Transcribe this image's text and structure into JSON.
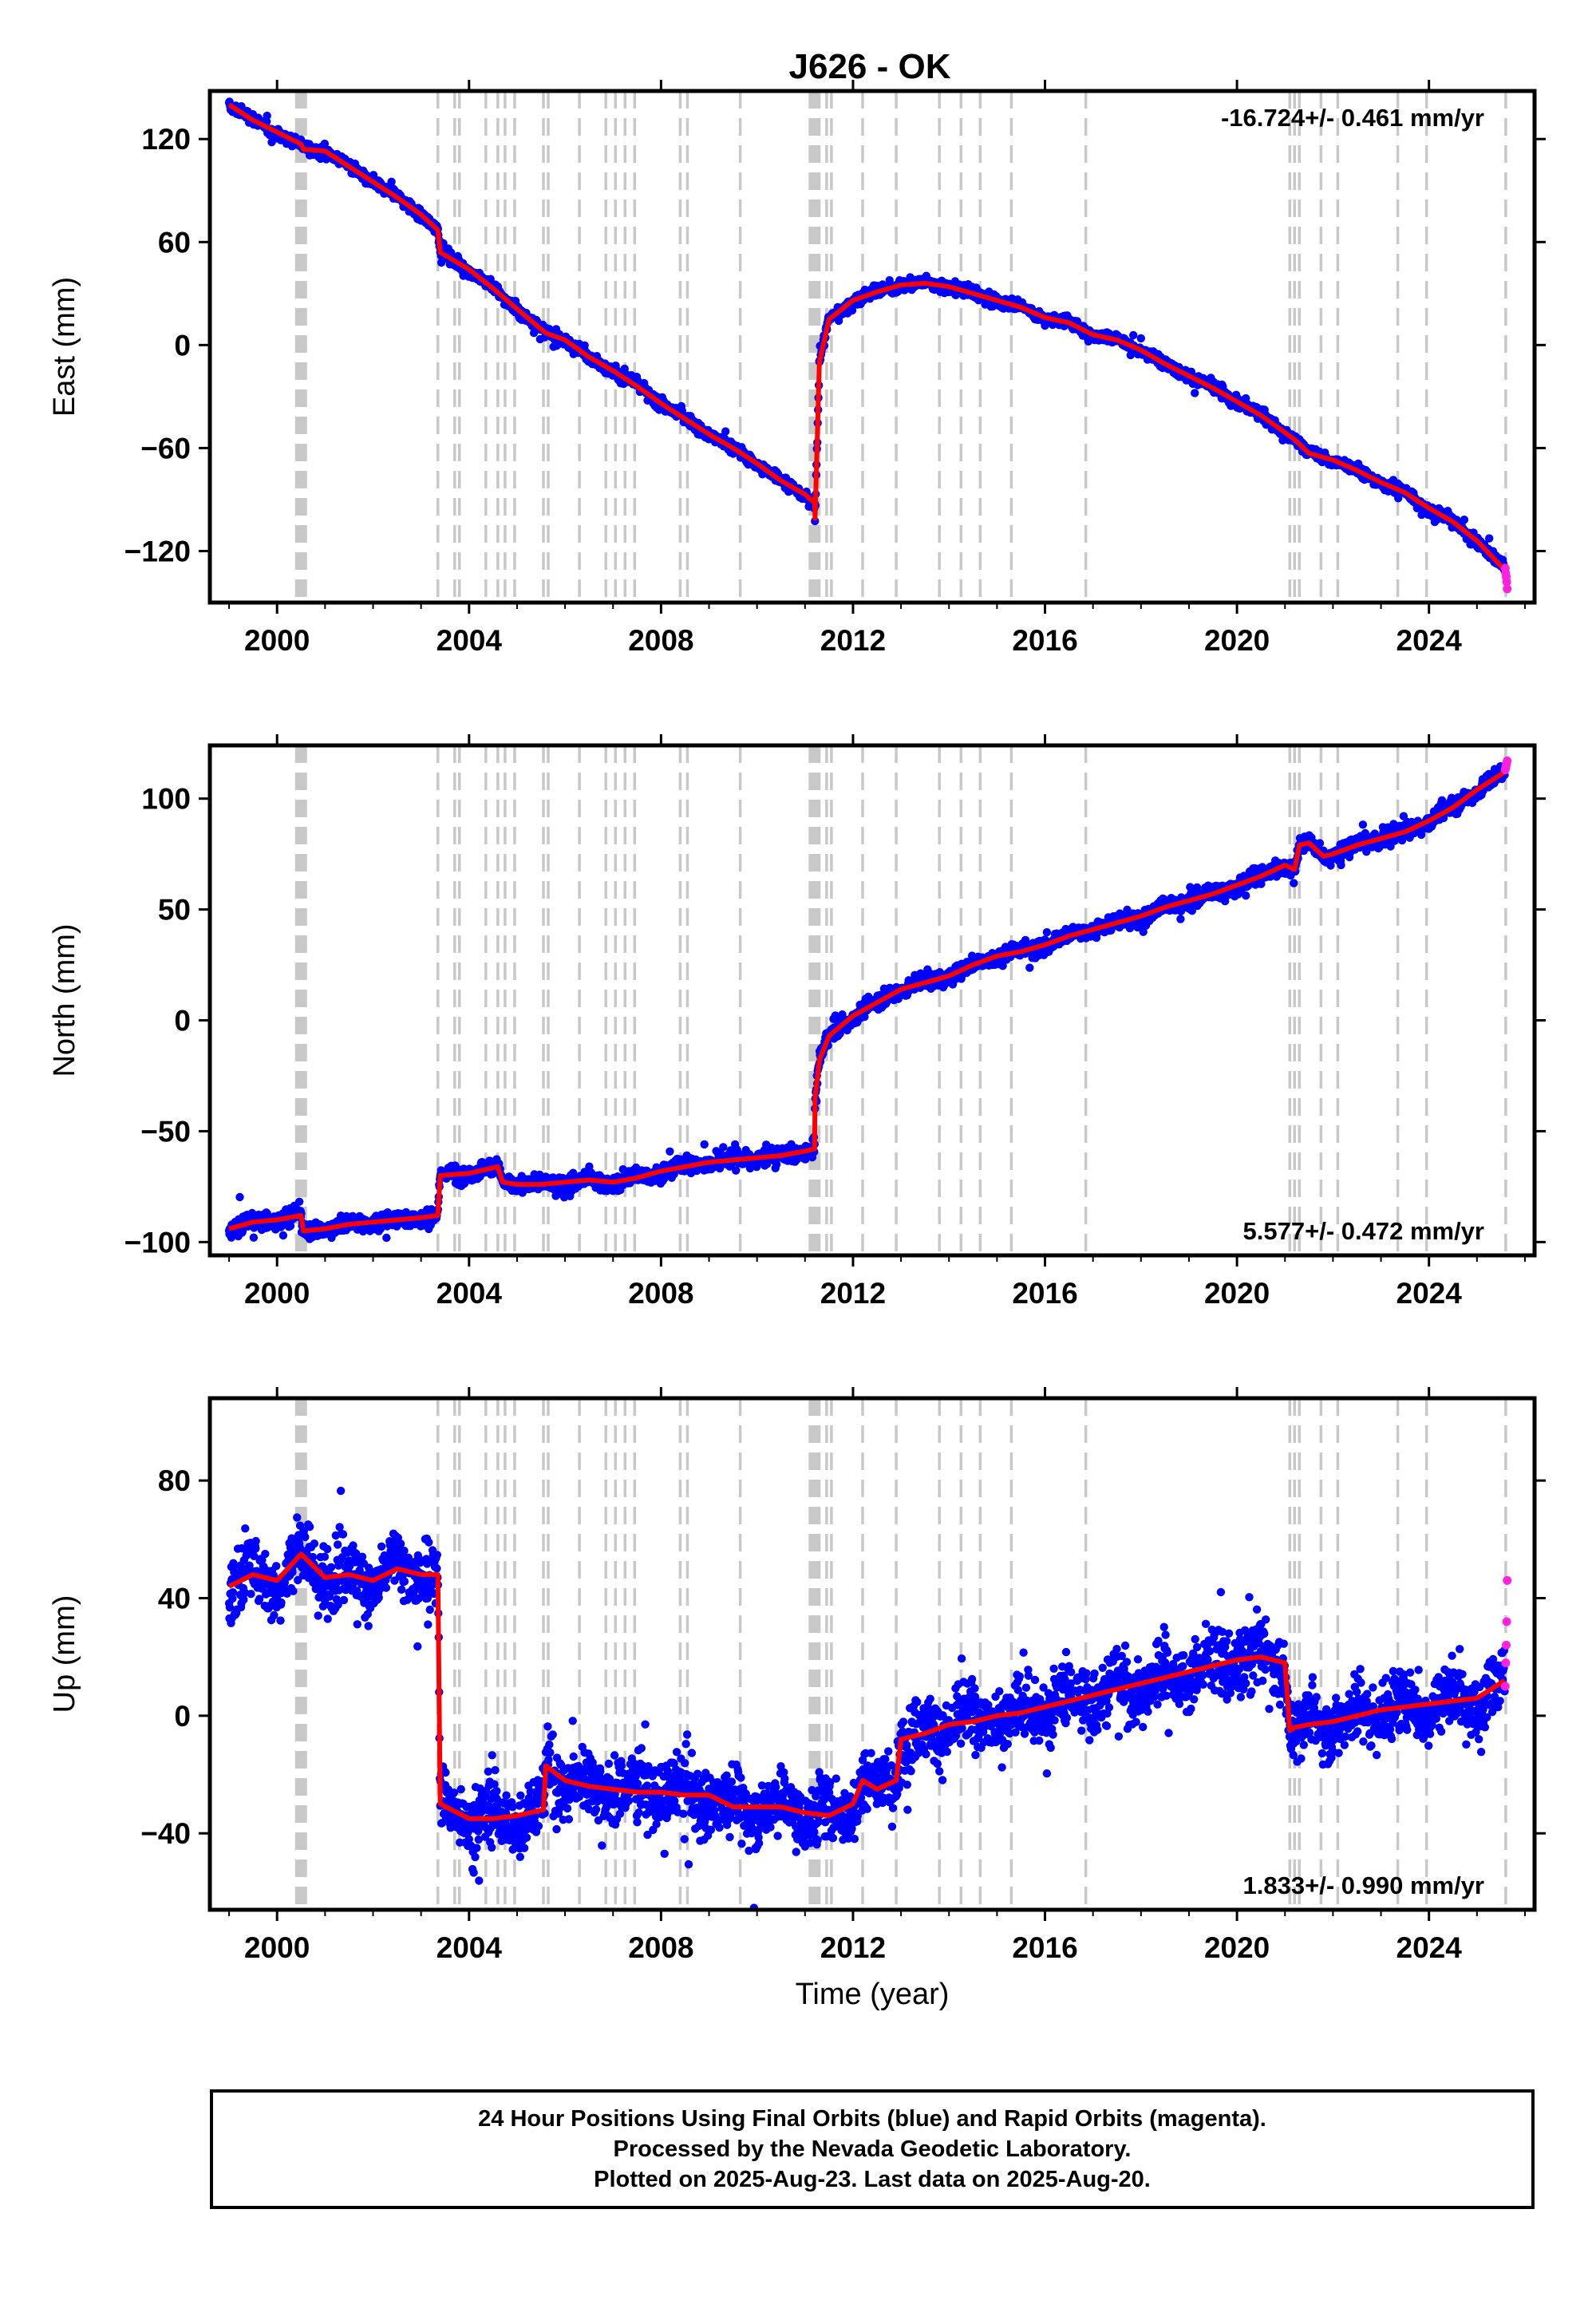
{
  "title": "J626 - OK",
  "footer": {
    "line1": "24 Hour Positions Using Final Orbits (blue) and Rapid Orbits (magenta).",
    "line2": "Processed by the Nevada Geodetic Laboratory.",
    "line3": "Plotted on 2025-Aug-23. Last data on 2025-Aug-20."
  },
  "colors": {
    "final_orbits": "#0000ff",
    "rapid_orbits": "#ff22dd",
    "model": "#ff0000",
    "event_lines": "#c8c8c8"
  },
  "chart_data": [
    {
      "type": "scatter",
      "ylabel": "East (mm)",
      "xlabel": "",
      "xlim": [
        1998.6,
        2026.2
      ],
      "ylim": [
        -150,
        148
      ],
      "xticks": [
        2000,
        2004,
        2008,
        2012,
        2016,
        2020,
        2024
      ],
      "yticks": [
        120,
        60,
        0,
        -60,
        -120
      ],
      "ytick_labels": [
        "120",
        "60",
        "0",
        "−60",
        "−120"
      ],
      "rate_label": "-16.724+/- 0.461 mm/yr",
      "rate_position": "top-right",
      "scatter_noise_mm": 2.2,
      "event_lines": [
        2000.45,
        2000.55,
        2003.35,
        2003.7,
        2003.8,
        2004.35,
        2004.6,
        2004.75,
        2004.95,
        2005.55,
        2005.65,
        2006.3,
        2006.85,
        2007.05,
        2007.25,
        2007.45,
        2008.4,
        2008.55,
        2009.65,
        2011.15,
        2011.25,
        2011.45,
        2011.55,
        2012.2,
        2012.9,
        2013.8,
        2014.25,
        2014.65,
        2015.3,
        2016.85,
        2021.1,
        2021.2,
        2021.3,
        2021.75,
        2022.1,
        2023.35,
        2023.95,
        2025.6
      ],
      "series": [
        {
          "name": "Final Orbits",
          "x": [
            1999.0,
            1999.5,
            2000.0,
            2000.5,
            2000.55,
            2001.0,
            2001.5,
            2002.0,
            2002.5,
            2003.0,
            2003.35,
            2003.4,
            2004.0,
            2004.5,
            2005.0,
            2005.6,
            2006.0,
            2006.5,
            2007.0,
            2007.5,
            2008.0,
            2008.5,
            2009.0,
            2009.5,
            2010.0,
            2010.5,
            2011.0,
            2011.2,
            2011.21,
            2011.3,
            2011.5,
            2012.0,
            2012.5,
            2013.0,
            2013.5,
            2014.0,
            2014.5,
            2015.0,
            2015.5,
            2016.0,
            2016.5,
            2017.0,
            2017.5,
            2018.0,
            2018.5,
            2019.0,
            2019.5,
            2020.0,
            2020.5,
            2021.0,
            2021.2,
            2021.5,
            2022.0,
            2022.5,
            2023.0,
            2023.5,
            2024.0,
            2024.5,
            2025.0,
            2025.58
          ],
          "y": [
            140,
            131,
            124,
            117,
            114,
            113,
            104,
            95,
            86,
            76,
            67,
            54,
            44,
            33,
            21,
            7,
            3,
            -7,
            -15,
            -24,
            -34,
            -43,
            -52,
            -60,
            -69,
            -79,
            -87,
            -92,
            -101,
            -10,
            15,
            26,
            31,
            35,
            36,
            34,
            30,
            26,
            22,
            16,
            13,
            6,
            3,
            -3,
            -11,
            -18,
            -25,
            -33,
            -41,
            -51,
            -55,
            -63,
            -67,
            -73,
            -80,
            -86,
            -95,
            -103,
            -114,
            -131
          ]
        },
        {
          "name": "Rapid Orbits",
          "x": [
            2025.59,
            2025.6,
            2025.61,
            2025.62,
            2025.63
          ],
          "y": [
            -130,
            -133,
            -135,
            -138,
            -142
          ]
        }
      ]
    },
    {
      "type": "scatter",
      "ylabel": "North (mm)",
      "xlabel": "",
      "xlim": [
        1998.6,
        2026.2
      ],
      "ylim": [
        -106,
        124
      ],
      "xticks": [
        2000,
        2004,
        2008,
        2012,
        2016,
        2020,
        2024
      ],
      "yticks": [
        100,
        50,
        0,
        -50,
        -100
      ],
      "ytick_labels": [
        "100",
        "50",
        "0",
        "−50",
        "−100"
      ],
      "rate_label": "5.577+/- 0.472 mm/yr",
      "rate_position": "bottom-right",
      "scatter_noise_mm": 2.4,
      "event_lines": [
        2000.45,
        2000.55,
        2003.35,
        2003.7,
        2003.8,
        2004.35,
        2004.6,
        2004.75,
        2004.95,
        2005.55,
        2005.65,
        2006.3,
        2006.85,
        2007.05,
        2007.25,
        2007.45,
        2008.4,
        2008.55,
        2009.65,
        2011.15,
        2011.25,
        2011.45,
        2011.55,
        2012.2,
        2012.9,
        2013.8,
        2014.25,
        2014.65,
        2015.3,
        2016.85,
        2021.1,
        2021.2,
        2021.3,
        2021.75,
        2022.1,
        2023.35,
        2023.95,
        2025.6
      ],
      "series": [
        {
          "name": "Final Orbits",
          "x": [
            1999.0,
            1999.5,
            2000.0,
            2000.5,
            2000.55,
            2001.0,
            2001.5,
            2002.0,
            2002.5,
            2003.0,
            2003.35,
            2003.4,
            2004.0,
            2004.6,
            2004.7,
            2005.0,
            2005.5,
            2006.0,
            2006.5,
            2007.0,
            2007.5,
            2008.0,
            2008.5,
            2009.0,
            2009.5,
            2010.0,
            2010.5,
            2011.0,
            2011.2,
            2011.21,
            2011.3,
            2011.5,
            2012.0,
            2012.5,
            2013.0,
            2013.5,
            2014.0,
            2014.5,
            2015.0,
            2015.5,
            2016.0,
            2016.5,
            2017.0,
            2017.5,
            2018.0,
            2018.5,
            2019.0,
            2019.5,
            2020.0,
            2020.5,
            2020.8,
            2021.0,
            2021.2,
            2021.3,
            2021.5,
            2021.8,
            2022.0,
            2022.5,
            2023.0,
            2023.5,
            2024.0,
            2024.5,
            2025.0,
            2025.58
          ],
          "y": [
            -94,
            -91,
            -90,
            -88,
            -95,
            -94,
            -92,
            -91,
            -90,
            -89,
            -88,
            -70,
            -69,
            -66,
            -73,
            -74,
            -74,
            -73,
            -72,
            -73,
            -71,
            -68,
            -66,
            -64,
            -63,
            -62,
            -61,
            -59,
            -58,
            -35,
            -18,
            -7,
            2,
            8,
            14,
            17,
            20,
            25,
            29,
            31,
            34,
            38,
            41,
            44,
            47,
            51,
            54,
            57,
            61,
            65,
            68,
            70,
            68,
            79,
            80,
            74,
            75,
            79,
            82,
            85,
            90,
            96,
            104,
            112
          ]
        },
        {
          "name": "Rapid Orbits",
          "x": [
            2025.59,
            2025.6,
            2025.61,
            2025.62,
            2025.63
          ],
          "y": [
            113,
            114,
            115,
            116,
            117
          ]
        }
      ]
    },
    {
      "type": "scatter",
      "ylabel": "Up (mm)",
      "xlabel": "Time (year)",
      "xlim": [
        1998.6,
        2026.2
      ],
      "ylim": [
        -66,
        108
      ],
      "xticks": [
        2000,
        2004,
        2008,
        2012,
        2016,
        2020,
        2024
      ],
      "yticks": [
        80,
        40,
        0,
        -40
      ],
      "ytick_labels": [
        "80",
        "40",
        "0",
        "−40"
      ],
      "rate_label": "1.833+/- 0.990 mm/yr",
      "rate_position": "bottom-right",
      "scatter_noise_mm": 7.5,
      "event_lines": [
        2000.45,
        2000.55,
        2003.35,
        2003.7,
        2003.8,
        2004.35,
        2004.6,
        2004.75,
        2004.95,
        2005.55,
        2005.65,
        2006.3,
        2006.85,
        2007.05,
        2007.25,
        2007.45,
        2008.4,
        2008.55,
        2009.65,
        2011.15,
        2011.25,
        2011.45,
        2011.55,
        2012.2,
        2012.9,
        2013.8,
        2014.25,
        2014.65,
        2015.3,
        2016.85,
        2021.1,
        2021.2,
        2021.3,
        2021.75,
        2022.1,
        2023.35,
        2023.95,
        2025.6
      ],
      "series": [
        {
          "name": "Final Orbits",
          "x": [
            1999.0,
            1999.5,
            2000.0,
            2000.5,
            2001.0,
            2001.5,
            2002.0,
            2002.5,
            2003.0,
            2003.35,
            2003.4,
            2004.0,
            2004.5,
            2005.0,
            2005.55,
            2005.6,
            2006.0,
            2006.5,
            2007.0,
            2007.5,
            2008.0,
            2008.5,
            2009.0,
            2009.5,
            2010.0,
            2010.5,
            2011.0,
            2011.5,
            2012.0,
            2012.2,
            2012.5,
            2012.9,
            2013.0,
            2013.5,
            2014.0,
            2014.5,
            2015.0,
            2015.5,
            2016.0,
            2016.5,
            2017.0,
            2017.5,
            2018.0,
            2018.5,
            2019.0,
            2019.5,
            2020.0,
            2020.5,
            2021.0,
            2021.1,
            2021.2,
            2021.5,
            2022.0,
            2022.5,
            2023.0,
            2023.5,
            2024.0,
            2024.5,
            2025.0,
            2025.58
          ],
          "y": [
            44,
            48,
            46,
            55,
            47,
            48,
            46,
            50,
            48,
            48,
            -30,
            -35,
            -35,
            -34,
            -32,
            -17,
            -22,
            -24,
            -25,
            -26,
            -26,
            -27,
            -27,
            -31,
            -31,
            -31,
            -33,
            -34,
            -30,
            -22,
            -25,
            -22,
            -8,
            -6,
            -3,
            -2,
            0,
            1,
            3,
            5,
            7,
            9,
            11,
            13,
            15,
            17,
            19,
            20,
            18,
            -5,
            -4,
            -3,
            -2,
            0,
            2,
            3,
            4,
            5,
            6,
            12
          ]
        },
        {
          "name": "Rapid Orbits",
          "x": [
            2025.59,
            2025.6,
            2025.61,
            2025.62,
            2025.63
          ],
          "y": [
            10,
            18,
            24,
            32,
            46
          ]
        }
      ]
    }
  ]
}
